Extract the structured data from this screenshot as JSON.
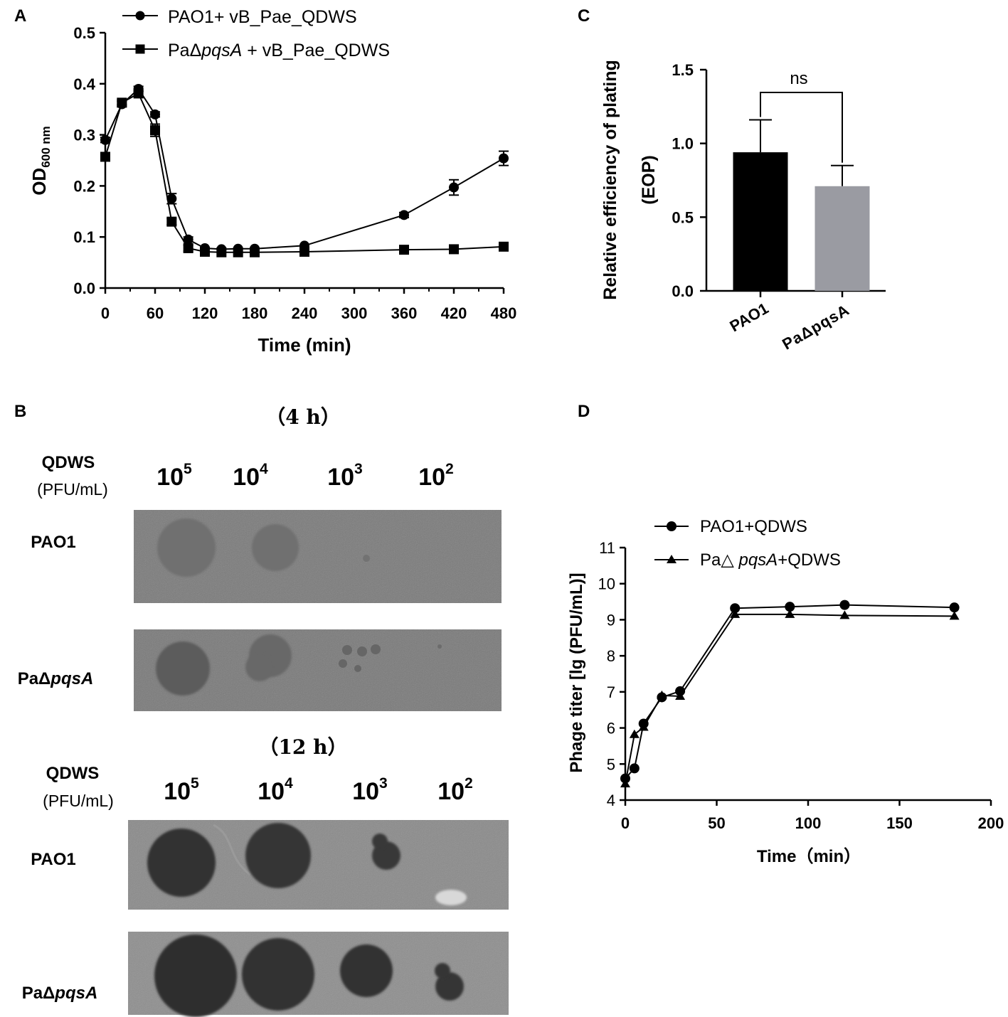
{
  "chart_data": [
    {
      "panel": "A",
      "type": "line",
      "xlabel": "Time (min)",
      "ylabel_main": "OD",
      "ylabel_sub": "600 nm",
      "xlim": [
        0,
        480
      ],
      "ylim": [
        0.0,
        0.5
      ],
      "xticks": [
        0,
        60,
        120,
        180,
        240,
        300,
        360,
        420,
        480
      ],
      "yticks": [
        "0.0",
        "0.1",
        "0.2",
        "0.3",
        "0.4",
        "0.5"
      ],
      "legend": "top",
      "series": [
        {
          "name": "PAO1+ vB_Pae_QDWS",
          "marker": "circle",
          "x": [
            0,
            20,
            40,
            60,
            80,
            100,
            120,
            140,
            160,
            180,
            240,
            360,
            420,
            480
          ],
          "y": [
            0.29,
            0.36,
            0.39,
            0.34,
            0.175,
            0.095,
            0.078,
            0.076,
            0.077,
            0.077,
            0.083,
            0.143,
            0.197,
            0.254
          ],
          "err": [
            0.005,
            0.005,
            0.005,
            0.005,
            0.01,
            0.005,
            0.004,
            0.003,
            0.003,
            0.003,
            0.004,
            0.005,
            0.015,
            0.014
          ]
        },
        {
          "name_pre": "PaΔ",
          "name_it": "pqsA",
          "name_post": " + vB_Pae_QDWS",
          "marker": "square",
          "x": [
            0,
            20,
            40,
            60,
            80,
            100,
            120,
            140,
            160,
            180,
            240,
            360,
            420,
            480
          ],
          "y": [
            0.257,
            0.363,
            0.381,
            0.309,
            0.13,
            0.078,
            0.071,
            0.07,
            0.07,
            0.07,
            0.071,
            0.075,
            0.076,
            0.081
          ],
          "err": [
            0.004,
            0.005,
            0.005,
            0.012,
            0.006,
            0.006,
            0.003,
            0.003,
            0.003,
            0.003,
            0.003,
            0.003,
            0.003,
            0.003
          ]
        }
      ]
    },
    {
      "panel": "C",
      "type": "bar",
      "ylabel_line1": "Relative efficiency of plating",
      "ylabel_line2": "(EOP)",
      "ylim": [
        0.0,
        1.5
      ],
      "yticks": [
        "0.0",
        "0.5",
        "1.0",
        "1.5"
      ],
      "categories": [
        "PAO1",
        "PaΔpqsA"
      ],
      "values": [
        0.94,
        0.71
      ],
      "err": [
        0.22,
        0.14
      ],
      "colors": [
        "#000000",
        "#9a9ba2"
      ],
      "annotation": "ns"
    },
    {
      "panel": "D",
      "type": "line",
      "xlabel": "Time（min）",
      "ylabel": "Phage titer [lg (PFU/mL)]",
      "xlim": [
        0,
        200
      ],
      "ylim": [
        4,
        11
      ],
      "xticks": [
        0,
        50,
        100,
        150,
        200
      ],
      "yticks": [
        4,
        5,
        6,
        7,
        8,
        9,
        10,
        11
      ],
      "legend": "top",
      "series": [
        {
          "name": "PAO1+QDWS",
          "marker": "circle",
          "x": [
            0,
            5,
            10,
            20,
            30,
            60,
            90,
            120,
            180
          ],
          "y": [
            4.6,
            4.88,
            6.12,
            6.85,
            7.02,
            9.32,
            9.36,
            9.41,
            9.34
          ]
        },
        {
          "name_pre": "Pa△ ",
          "name_it": "pqsA",
          "name_post": "+QDWS",
          "marker": "triangle",
          "x": [
            0,
            5,
            10,
            20,
            30,
            60,
            90,
            120,
            180
          ],
          "y": [
            4.45,
            5.82,
            6.02,
            6.9,
            6.88,
            9.15,
            9.15,
            9.12,
            9.1
          ]
        }
      ]
    }
  ],
  "panel_labels": {
    "a": "A",
    "b": "B",
    "c": "C",
    "d": "D"
  },
  "plaque_assay": {
    "block_4h": {
      "title": "（4 h）",
      "row_header": "QDWS",
      "row_header_unit": "(PFU/mL)",
      "base": "10",
      "exponents": [
        "5",
        "4",
        "3",
        "2"
      ],
      "rows": [
        "PAO1",
        "PaΔ|pqsA"
      ]
    },
    "block_12h": {
      "title": "（12 h）",
      "row_header": "QDWS",
      "row_header_unit": "(PFU/mL)",
      "base": "10",
      "exponents": [
        "5",
        "4",
        "3",
        "2"
      ],
      "rows": [
        "PAO1",
        "PaΔ|pqsA"
      ]
    },
    "strain_pao1": "PAO1",
    "strain_mut_pre": "PaΔ",
    "strain_mut_it": "pqsA"
  }
}
